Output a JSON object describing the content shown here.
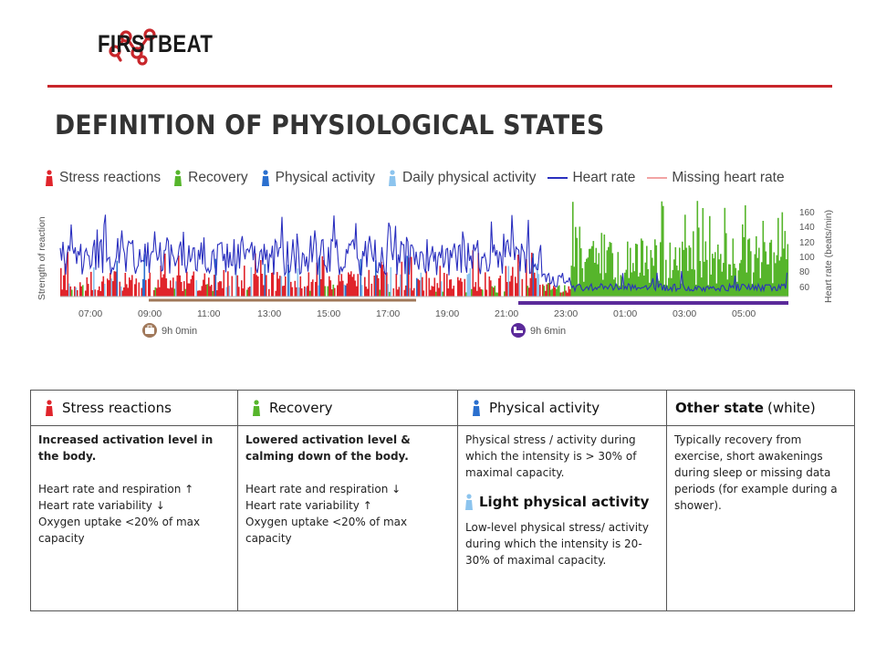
{
  "brand": {
    "name": "FIRSTBEAT",
    "accent": "#c8262b"
  },
  "title": "DEFINITION OF PHYSIOLOGICAL STATES",
  "legend": [
    {
      "label": "Stress reactions",
      "icon": "stress-person-icon",
      "color": "#e0242b"
    },
    {
      "label": "Recovery",
      "icon": "recovery-person-icon",
      "color": "#56b52b"
    },
    {
      "label": "Physical activity",
      "icon": "activity-person-icon",
      "color": "#2a6fce"
    },
    {
      "label": "Daily physical activity",
      "icon": "light-activity-person-icon",
      "color": "#8cc4ee"
    },
    {
      "label": "Heart rate",
      "icon": "heart-rate-line-icon",
      "color": "#2a2fbf"
    },
    {
      "label": "Missing heart rate",
      "icon": "missing-heart-rate-line-icon",
      "color": "#f2a4a4"
    }
  ],
  "chart_data": {
    "type": "bar",
    "y_left_label": "Strength of reaction",
    "y_right_label": "Heart rate (beats/min)",
    "y_right_ticks": [
      "160",
      "140",
      "120",
      "100",
      "80",
      "60"
    ],
    "x_ticks": [
      "07:00",
      "09:00",
      "11:00",
      "13:00",
      "15:00",
      "17:00",
      "19:00",
      "21:00",
      "23:00",
      "01:00",
      "03:00",
      "05:00"
    ],
    "periods": [
      {
        "type": "work",
        "icon": "briefcase-icon",
        "label": "9h 0min",
        "color": "#a0785a"
      },
      {
        "type": "sleep",
        "icon": "bed-icon",
        "label": "9h 6min",
        "color": "#5b2a9a"
      }
    ]
  },
  "table": {
    "headers": [
      {
        "label": "Stress reactions",
        "icon": "stress-person-icon"
      },
      {
        "label": "Recovery",
        "icon": "recovery-person-icon"
      },
      {
        "label": "Physical activity",
        "icon": "activity-person-icon"
      },
      {
        "label": "Other state",
        "suffix": "(white)"
      }
    ],
    "stress": {
      "lead": "Increased activation level in the body.",
      "l1": "Heart rate and respiration ↑",
      "l2": "Heart rate variability ↓",
      "l3": "Oxygen uptake <20% of max capacity"
    },
    "recovery": {
      "lead": "Lowered activation level & calming down of the body.",
      "l1": "Heart rate and respiration ↓",
      "l2": "Heart rate variability ↑",
      "l3": "Oxygen uptake <20% of max capacity"
    },
    "activity": {
      "text": "Physical stress / activity during which the intensity is > 30% of maximal capacity.",
      "sub_title": "Light physical activity",
      "sub_icon": "light-activity-person-icon",
      "sub_text": "Low-level physical stress/ activity during which the intensity is 20-30% of maximal capacity."
    },
    "other": {
      "text": "Typically recovery from exercise, short awakenings during sleep or missing data periods (for example during a shower)."
    }
  }
}
